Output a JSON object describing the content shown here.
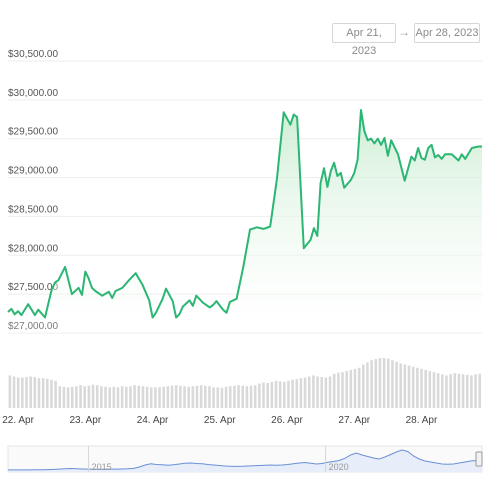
{
  "range": {
    "from": "Apr 21, 2023",
    "arrow": "→",
    "to": "Apr 28, 2023"
  },
  "colors": {
    "line": "#2bb673",
    "fillTop": "#c9ecd0",
    "fillBottom": "#ffffff",
    "volume": "#d9d9d9",
    "grid": "#eeeeee",
    "navigator": "#6a8fd6"
  },
  "chart_data": {
    "type": "area",
    "title": "",
    "xlabel": "",
    "ylabel": "",
    "ylim": [
      27000,
      30500
    ],
    "y_ticks": [
      "$27,000.00",
      "$27,500.00",
      "$28,000.00",
      "$28,500.00",
      "$29,000.00",
      "$29,500.00",
      "$30,000.00",
      "$30,500.00"
    ],
    "x_ticks": [
      "22. Apr",
      "23. Apr",
      "24. Apr",
      "25. Apr",
      "26. Apr",
      "27. Apr",
      "28. Apr"
    ],
    "xlim": [
      0,
      7.05
    ],
    "grid": true,
    "series": [
      {
        "x": [
          0.0,
          0.05,
          0.1,
          0.15,
          0.2,
          0.3,
          0.4,
          0.45,
          0.55,
          0.65,
          0.7,
          0.75,
          0.85,
          0.95,
          1.05,
          1.1,
          1.15,
          1.2,
          1.25,
          1.3,
          1.4,
          1.5,
          1.55,
          1.6,
          1.7,
          1.8,
          1.9,
          2.0,
          2.1,
          2.15,
          2.2,
          2.3,
          2.35,
          2.45,
          2.5,
          2.55,
          2.6,
          2.7,
          2.75,
          2.8,
          2.9,
          3.0,
          3.05,
          3.1,
          3.2,
          3.25,
          3.3,
          3.4,
          3.5,
          3.6,
          3.7,
          3.8,
          3.9,
          4.0,
          4.1,
          4.2,
          4.25,
          4.3,
          4.4,
          4.5,
          4.55,
          4.6,
          4.65,
          4.7,
          4.75,
          4.8,
          4.85,
          4.9,
          4.95,
          5.0,
          5.1,
          5.15,
          5.2,
          5.25,
          5.3,
          5.35,
          5.4,
          5.45,
          5.5,
          5.55,
          5.6,
          5.65,
          5.7,
          5.8,
          5.9,
          6.0,
          6.05,
          6.1,
          6.15,
          6.2,
          6.25,
          6.3,
          6.35,
          6.4,
          6.45,
          6.5,
          6.6,
          6.7,
          6.75,
          6.8,
          6.9,
          7.0,
          7.05
        ],
        "values": [
          27270,
          27310,
          27240,
          27280,
          27230,
          27370,
          27230,
          27300,
          27200,
          27560,
          27650,
          27680,
          27850,
          27500,
          27580,
          27490,
          27790,
          27700,
          27580,
          27540,
          27480,
          27530,
          27450,
          27540,
          27580,
          27680,
          27770,
          27620,
          27420,
          27200,
          27260,
          27440,
          27570,
          27410,
          27200,
          27240,
          27340,
          27420,
          27350,
          27480,
          27390,
          27330,
          27360,
          27410,
          27300,
          27260,
          27400,
          27440,
          27850,
          28330,
          28360,
          28340,
          28370,
          28980,
          29840,
          29680,
          29810,
          29780,
          28090,
          28200,
          28350,
          28250,
          28930,
          29120,
          28880,
          29080,
          29190,
          29020,
          29060,
          28870,
          28970,
          29060,
          29230,
          29870,
          29600,
          29480,
          29500,
          29440,
          29500,
          29420,
          29510,
          29280,
          29480,
          29300,
          28960,
          29270,
          29220,
          29380,
          29250,
          29230,
          29380,
          29420,
          29260,
          29290,
          29240,
          29300,
          29300,
          29220,
          29300,
          29240,
          29380,
          29400,
          29400
        ]
      }
    ],
    "volume": [
      60,
      58,
      56,
      56,
      57,
      58,
      57,
      55,
      55,
      54,
      52,
      50,
      40,
      39,
      38,
      39,
      40,
      42,
      40,
      41,
      43,
      42,
      40,
      39,
      38,
      39,
      38,
      40,
      39,
      40,
      42,
      41,
      40,
      39,
      38,
      38,
      38,
      39,
      40,
      41,
      42,
      41,
      40,
      39,
      40,
      41,
      42,
      41,
      40,
      38,
      38,
      37,
      39,
      40,
      41,
      42,
      41,
      40,
      41,
      42,
      45,
      47,
      46,
      48,
      50,
      49,
      48,
      50,
      52,
      53,
      55,
      56,
      58,
      60,
      58,
      57,
      56,
      58,
      63,
      65,
      66,
      68,
      70,
      72,
      74,
      80,
      84,
      88,
      90,
      92,
      92,
      91,
      88,
      85,
      82,
      80,
      78,
      76,
      74,
      72,
      70,
      68,
      66,
      64,
      62,
      60,
      62,
      64,
      63,
      62,
      61,
      60,
      62,
      63
    ],
    "navigator": {
      "labels": [
        "2015",
        "2020"
      ],
      "values": [
        0.2,
        0.2,
        0.2,
        0.3,
        0.3,
        0.4,
        0.5,
        0.8,
        1.2,
        1.8,
        2.5,
        3.0,
        2.4,
        2.0,
        1.9,
        1.6,
        1.5,
        1.6,
        1.7,
        1.7,
        2.0,
        2.4,
        3.2,
        6.0,
        10.0,
        12.5,
        11.0,
        10.5,
        9.5,
        10.5,
        12.0,
        13.5,
        14.0,
        13.0,
        12.5,
        11.0,
        10.0,
        9.0,
        8.0,
        7.5,
        7.2,
        7.5,
        8.0,
        8.5,
        9.0,
        9.5,
        10.0,
        9.5,
        10.0,
        11.0,
        12.5,
        14.0,
        15.0,
        13.5,
        12.0,
        13.0,
        15.5,
        17.0,
        19.0,
        23.5,
        30.0,
        34.0,
        30.0,
        27.0,
        24.0,
        22.0,
        26.0,
        31.0,
        36.0,
        40.0,
        37.0,
        28.0,
        22.0,
        18.0,
        16.0,
        14.0,
        12.0,
        11.5,
        12.0,
        14.0,
        16.0,
        18.0,
        19.0,
        20.0
      ]
    }
  }
}
